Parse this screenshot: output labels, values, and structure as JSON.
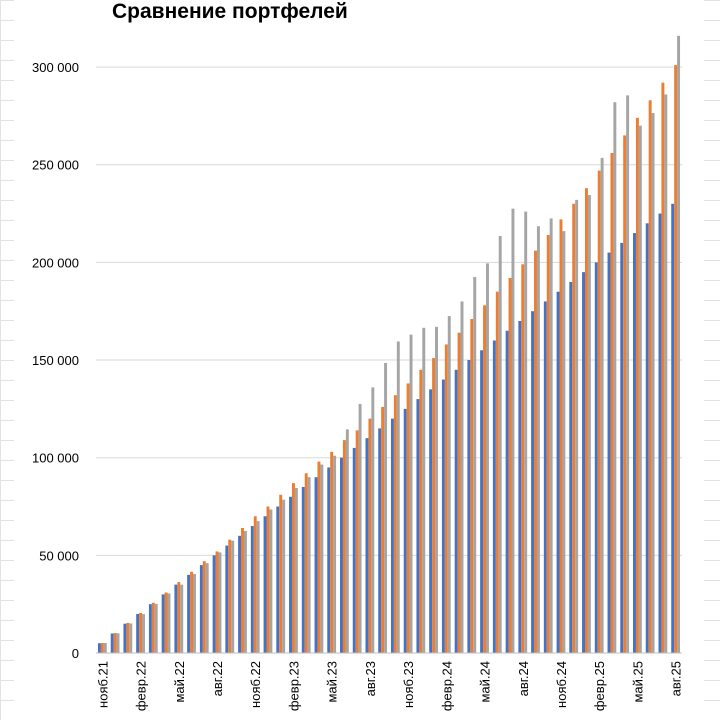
{
  "chart_data": {
    "type": "bar",
    "title": "Сравнение портфелей",
    "xlabel": "",
    "ylabel": "",
    "ylim": [
      0,
      320000
    ],
    "yticks": [
      0,
      50000,
      100000,
      150000,
      200000,
      250000,
      300000
    ],
    "ytick_labels": [
      "0",
      "50 000",
      "100 000",
      "150 000",
      "200 000",
      "250 000",
      "300 000"
    ],
    "grid": true,
    "legend": "none",
    "colors": [
      "#4472C4",
      "#ED7D31",
      "#A5A5A5"
    ],
    "categories": [
      "нояб.21",
      "дек.21",
      "янв.22",
      "февр.22",
      "март.22",
      "апр.22",
      "май.22",
      "июнь.22",
      "июль.22",
      "авг.22",
      "сент.22",
      "окт.22",
      "нояб.22",
      "дек.22",
      "янв.23",
      "февр.23",
      "март.23",
      "апр.23",
      "май.23",
      "июнь.23",
      "июль.23",
      "авг.23",
      "сент.23",
      "окт.23",
      "нояб.23",
      "дек.23",
      "янв.24",
      "февр.24",
      "март.24",
      "апр.24",
      "май.24",
      "июнь.24",
      "июль.24",
      "авг.24",
      "сент.24",
      "окт.24",
      "нояб.24",
      "дек.24",
      "янв.25",
      "февр.25",
      "март.25",
      "апр.25",
      "май.25",
      "июнь.25",
      "июль.25",
      "авг.25"
    ],
    "x_tick_labels": [
      "нояб.21",
      "февр.22",
      "май.22",
      "авг.22",
      "нояб.22",
      "февр.23",
      "май.23",
      "авг.23",
      "нояб.23",
      "февр.24",
      "май.24",
      "авг.24",
      "нояб.24",
      "февр.25",
      "май.25",
      "авг.25"
    ],
    "series": [
      {
        "values": [
          5000,
          10000,
          15000,
          20000,
          25000,
          30000,
          35000,
          40000,
          45000,
          50000,
          55000,
          60000,
          65000,
          70000,
          75000,
          80000,
          85000,
          90000,
          95000,
          100000,
          105000,
          110000,
          115000,
          120000,
          125000,
          130000,
          135000,
          140000,
          145000,
          150000,
          155000,
          160000,
          165000,
          170000,
          175000,
          180000,
          185000,
          190000,
          195000,
          200000,
          205000,
          210000,
          215000,
          220000,
          225000,
          230000
        ]
      },
      {
        "values": [
          5100,
          10200,
          15400,
          20500,
          25700,
          31000,
          36300,
          41600,
          47000,
          52000,
          58000,
          64000,
          70000,
          75000,
          81000,
          87000,
          92000,
          98000,
          103000,
          109000,
          114000,
          120000,
          126000,
          132000,
          138000,
          145000,
          151000,
          158000,
          164000,
          171000,
          178000,
          185000,
          192000,
          199000,
          206000,
          214000,
          222000,
          230000,
          238000,
          247000,
          256000,
          265000,
          274000,
          283000,
          292000,
          301000
        ]
      },
      {
        "values": [
          5100,
          10100,
          15100,
          19900,
          25200,
          30500,
          35000,
          40500,
          46000,
          51500,
          57500,
          62500,
          67500,
          73500,
          78500,
          84500,
          90000,
          96500,
          101000,
          114500,
          127500,
          136000,
          148500,
          159500,
          163000,
          166500,
          167000,
          172500,
          180000,
          192500,
          199500,
          213500,
          227500,
          226000,
          218500,
          222500,
          216000,
          232000,
          234500,
          253500,
          282000,
          285500,
          270000,
          276500,
          286000,
          316000
        ]
      }
    ]
  }
}
